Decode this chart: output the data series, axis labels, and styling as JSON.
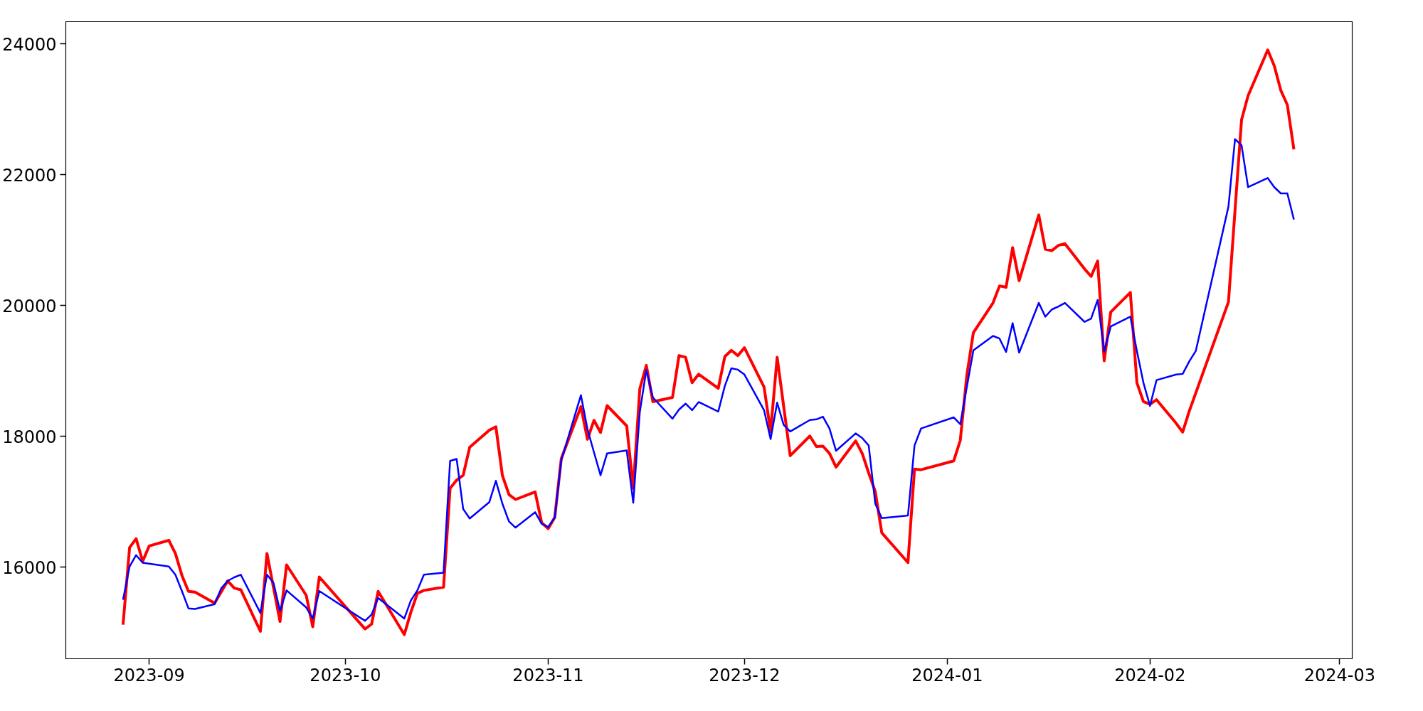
{
  "chart_data": {
    "type": "line",
    "xlim": [
      "2023-08-19T06:00",
      "2024-03-02T22:00"
    ],
    "ylim": [
      14600,
      24340
    ],
    "xticks": [
      {
        "value": "2023-09-01",
        "label": "2023-09"
      },
      {
        "value": "2023-10-01",
        "label": "2023-10"
      },
      {
        "value": "2023-11-01",
        "label": "2023-11"
      },
      {
        "value": "2023-12-01",
        "label": "2023-12"
      },
      {
        "value": "2024-01-01",
        "label": "2024-01"
      },
      {
        "value": "2024-02-01",
        "label": "2024-02"
      },
      {
        "value": "2024-03-01",
        "label": "2024-03"
      }
    ],
    "yticks": [
      16000,
      18000,
      20000,
      22000,
      24000
    ],
    "grid": false,
    "line_style": "solid",
    "marker": "none",
    "series": [
      {
        "color": "#ff0000",
        "x": [
          "2023-08-28",
          "2023-08-29",
          "2023-08-30",
          "2023-08-31",
          "2023-09-01",
          "2023-09-04",
          "2023-09-05",
          "2023-09-06",
          "2023-09-07",
          "2023-09-08",
          "2023-09-11",
          "2023-09-13",
          "2023-09-14",
          "2023-09-15",
          "2023-09-18",
          "2023-09-19",
          "2023-09-21",
          "2023-09-22",
          "2023-09-25",
          "2023-09-26",
          "2023-09-27",
          "2023-10-04",
          "2023-10-05",
          "2023-10-06",
          "2023-10-10",
          "2023-10-11",
          "2023-10-12",
          "2023-10-13",
          "2023-10-16",
          "2023-10-17",
          "2023-10-18",
          "2023-10-19",
          "2023-10-20",
          "2023-10-23",
          "2023-10-24",
          "2023-10-25",
          "2023-10-26",
          "2023-10-27",
          "2023-10-30",
          "2023-10-31",
          "2023-11-01",
          "2023-11-02",
          "2023-11-03",
          "2023-11-06",
          "2023-11-07",
          "2023-11-08",
          "2023-11-09",
          "2023-11-10",
          "2023-11-13",
          "2023-11-14",
          "2023-11-15",
          "2023-11-16",
          "2023-11-17",
          "2023-11-20",
          "2023-11-21",
          "2023-11-22",
          "2023-11-23",
          "2023-11-24",
          "2023-11-27",
          "2023-11-28",
          "2023-11-29",
          "2023-11-30",
          "2023-12-01",
          "2023-12-04",
          "2023-12-05",
          "2023-12-06",
          "2023-12-08",
          "2023-12-11",
          "2023-12-12",
          "2023-12-13",
          "2023-12-14",
          "2023-12-15",
          "2023-12-18",
          "2023-12-19",
          "2023-12-20",
          "2023-12-21",
          "2023-12-22",
          "2023-12-26",
          "2023-12-27",
          "2023-12-28",
          "2024-01-02",
          "2024-01-03",
          "2024-01-04",
          "2024-01-05",
          "2024-01-08",
          "2024-01-09",
          "2024-01-10",
          "2024-01-11",
          "2024-01-12",
          "2024-01-15",
          "2024-01-16",
          "2024-01-17",
          "2024-01-18",
          "2024-01-19",
          "2024-01-22",
          "2024-01-23",
          "2024-01-24",
          "2024-01-25",
          "2024-01-26",
          "2024-01-29",
          "2024-01-30",
          "2024-01-31",
          "2024-02-01",
          "2024-02-02",
          "2024-02-05",
          "2024-02-06",
          "2024-02-07",
          "2024-02-13",
          "2024-02-14",
          "2024-02-15",
          "2024-02-16",
          "2024-02-19",
          "2024-02-20",
          "2024-02-21",
          "2024-02-22",
          "2024-02-23"
        ],
        "values": [
          15120,
          16300,
          16435,
          16090,
          16325,
          16410,
          16210,
          15875,
          15630,
          15620,
          15450,
          15790,
          15680,
          15655,
          15020,
          16210,
          15170,
          16035,
          15570,
          15090,
          15850,
          15055,
          15130,
          15630,
          14970,
          15310,
          15600,
          15645,
          15695,
          17205,
          17330,
          17405,
          17835,
          18095,
          18145,
          17400,
          17110,
          17035,
          17150,
          16680,
          16590,
          16760,
          17660,
          18455,
          17955,
          18245,
          18060,
          18470,
          18160,
          17205,
          18725,
          19085,
          18530,
          18595,
          19235,
          19210,
          18820,
          18950,
          18735,
          19220,
          19315,
          19235,
          19355,
          18755,
          18070,
          19210,
          17705,
          18005,
          17845,
          17850,
          17740,
          17530,
          17930,
          17740,
          17440,
          17155,
          16525,
          16070,
          17500,
          17490,
          17625,
          17940,
          18935,
          19585,
          20040,
          20300,
          20280,
          20885,
          20380,
          21385,
          20860,
          20840,
          20920,
          20945,
          20560,
          20445,
          20680,
          19155,
          19900,
          20200,
          18820,
          18530,
          18490,
          18560,
          18200,
          18065,
          18385,
          20055,
          21455,
          22840,
          23210,
          23908,
          23666,
          23290,
          23068,
          22387
        ]
      },
      {
        "color": "#0000ff",
        "x": [
          "2023-08-28",
          "2023-08-29",
          "2023-08-30",
          "2023-08-31",
          "2023-09-04",
          "2023-09-05",
          "2023-09-06",
          "2023-09-07",
          "2023-09-08",
          "2023-09-11",
          "2023-09-12",
          "2023-09-13",
          "2023-09-14",
          "2023-09-15",
          "2023-09-18",
          "2023-09-19",
          "2023-09-20",
          "2023-09-21",
          "2023-09-22",
          "2023-09-25",
          "2023-09-26",
          "2023-09-27",
          "2023-10-04",
          "2023-10-05",
          "2023-10-06",
          "2023-10-10",
          "2023-10-11",
          "2023-10-12",
          "2023-10-13",
          "2023-10-16",
          "2023-10-17",
          "2023-10-18",
          "2023-10-19",
          "2023-10-20",
          "2023-10-23",
          "2023-10-24",
          "2023-10-25",
          "2023-10-26",
          "2023-10-27",
          "2023-10-30",
          "2023-10-31",
          "2023-11-01",
          "2023-11-02",
          "2023-11-03",
          "2023-11-06",
          "2023-11-07",
          "2023-11-08",
          "2023-11-09",
          "2023-11-10",
          "2023-11-13",
          "2023-11-14",
          "2023-11-15",
          "2023-11-16",
          "2023-11-17",
          "2023-11-20",
          "2023-11-21",
          "2023-11-22",
          "2023-11-23",
          "2023-11-24",
          "2023-11-27",
          "2023-11-28",
          "2023-11-29",
          "2023-11-30",
          "2023-12-01",
          "2023-12-04",
          "2023-12-05",
          "2023-12-06",
          "2023-12-07",
          "2023-12-08",
          "2023-12-11",
          "2023-12-12",
          "2023-12-13",
          "2023-12-14",
          "2023-12-15",
          "2023-12-18",
          "2023-12-19",
          "2023-12-20",
          "2023-12-21",
          "2023-12-22",
          "2023-12-26",
          "2023-12-27",
          "2023-12-28",
          "2024-01-02",
          "2024-01-03",
          "2024-01-04",
          "2024-01-05",
          "2024-01-08",
          "2024-01-09",
          "2024-01-10",
          "2024-01-11",
          "2024-01-12",
          "2024-01-15",
          "2024-01-16",
          "2024-01-17",
          "2024-01-18",
          "2024-01-19",
          "2024-01-22",
          "2024-01-23",
          "2024-01-24",
          "2024-01-25",
          "2024-01-26",
          "2024-01-29",
          "2024-01-30",
          "2024-01-31",
          "2024-02-01",
          "2024-02-02",
          "2024-02-05",
          "2024-02-06",
          "2024-02-07",
          "2024-02-08",
          "2024-02-13",
          "2024-02-14",
          "2024-02-15",
          "2024-02-16",
          "2024-02-19",
          "2024-02-20",
          "2024-02-21",
          "2024-02-22",
          "2024-02-23"
        ],
        "values": [
          15502,
          16010,
          16185,
          16068,
          16010,
          15885,
          15635,
          15370,
          15360,
          15435,
          15675,
          15790,
          15845,
          15885,
          15300,
          15885,
          15760,
          15330,
          15645,
          15385,
          15215,
          15635,
          15180,
          15275,
          15530,
          15215,
          15490,
          15645,
          15885,
          15915,
          17625,
          17655,
          16890,
          16745,
          16995,
          17320,
          16970,
          16700,
          16605,
          16840,
          16665,
          16615,
          16760,
          17635,
          18630,
          18110,
          17755,
          17405,
          17740,
          17785,
          16985,
          18370,
          19015,
          18595,
          18270,
          18410,
          18500,
          18400,
          18525,
          18380,
          18770,
          19040,
          19020,
          18945,
          18400,
          17960,
          18515,
          18175,
          18075,
          18250,
          18260,
          18300,
          18120,
          17780,
          18045,
          17975,
          17860,
          16970,
          16750,
          16790,
          17860,
          18120,
          18290,
          18185,
          18755,
          19315,
          19535,
          19495,
          19290,
          19730,
          19280,
          20040,
          19830,
          19940,
          19985,
          20040,
          19750,
          19800,
          20085,
          19295,
          19680,
          19830,
          19305,
          18820,
          18465,
          18860,
          18945,
          18955,
          19145,
          19305,
          21515,
          22545,
          22450,
          21810,
          21950,
          21810,
          21715,
          21715,
          21315
        ]
      }
    ]
  }
}
